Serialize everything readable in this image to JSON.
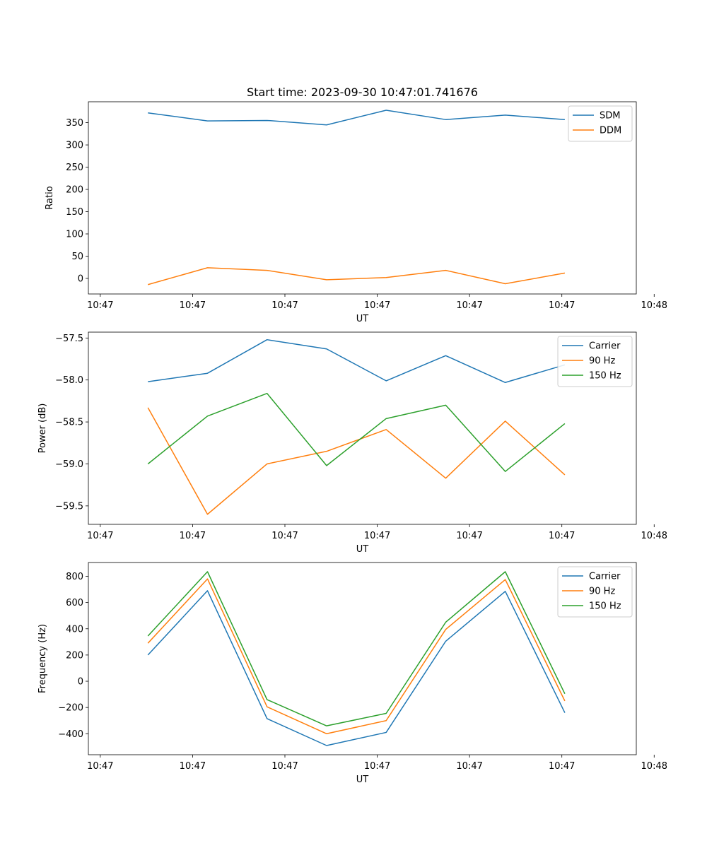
{
  "chart_data": [
    {
      "type": "line",
      "title": "Start time: 2023-09-30 10:47:01.741676",
      "xlabel": "UT",
      "ylabel": "Ratio",
      "xlim": [
        0,
        9.2
      ],
      "ylim": [
        -35,
        397
      ],
      "yticks": [
        0,
        50,
        100,
        150,
        200,
        250,
        300,
        350
      ],
      "xticks": [
        0.2,
        1.75,
        3.3,
        4.85,
        6.4,
        7.95,
        9.5
      ],
      "xtick_labels": [
        "10:47",
        "10:47",
        "10:47",
        "10:47",
        "10:47",
        "10:47",
        "10:48"
      ],
      "x": [
        1,
        2,
        3,
        4,
        5,
        6,
        7,
        8
      ],
      "legend_position": "top-right",
      "series": [
        {
          "name": "SDM",
          "color": "#1f77b4",
          "values": [
            372,
            354,
            355,
            345,
            378,
            357,
            367,
            357
          ]
        },
        {
          "name": "DDM",
          "color": "#ff7f0e",
          "values": [
            -14,
            24,
            18,
            -3,
            2,
            18,
            -12,
            12
          ]
        }
      ]
    },
    {
      "type": "line",
      "title": "",
      "xlabel": "UT",
      "ylabel": "Power (dB)",
      "xlim": [
        0,
        9.2
      ],
      "ylim": [
        -59.72,
        -57.43
      ],
      "yticks": [
        -59.5,
        -59.0,
        -58.5,
        -58.0,
        -57.5
      ],
      "ytick_labels": [
        "−59.5",
        "−59.0",
        "−58.5",
        "−58.0",
        "−57.5"
      ],
      "xticks": [
        0.2,
        1.75,
        3.3,
        4.85,
        6.4,
        7.95,
        9.5
      ],
      "xtick_labels": [
        "10:47",
        "10:47",
        "10:47",
        "10:47",
        "10:47",
        "10:47",
        "10:48"
      ],
      "x": [
        1,
        2,
        3,
        4,
        5,
        6,
        7,
        8
      ],
      "legend_position": "top-right",
      "series": [
        {
          "name": "Carrier",
          "color": "#1f77b4",
          "values": [
            -58.02,
            -57.92,
            -57.52,
            -57.63,
            -58.01,
            -57.71,
            -58.03,
            -57.82
          ]
        },
        {
          "name": "90 Hz",
          "color": "#ff7f0e",
          "values": [
            -58.33,
            -59.6,
            -59.0,
            -58.85,
            -58.59,
            -59.17,
            -58.49,
            -59.13
          ]
        },
        {
          "name": "150 Hz",
          "color": "#2ca02c",
          "values": [
            -59.0,
            -58.43,
            -58.16,
            -59.02,
            -58.46,
            -58.3,
            -59.09,
            -58.52
          ]
        }
      ]
    },
    {
      "type": "line",
      "title": "",
      "xlabel": "UT",
      "ylabel": "Frequency (Hz)",
      "xlim": [
        0,
        9.2
      ],
      "ylim": [
        -560,
        905
      ],
      "yticks": [
        -400,
        -200,
        0,
        200,
        400,
        600,
        800
      ],
      "ytick_labels": [
        "−400",
        "−200",
        "0",
        "200",
        "400",
        "600",
        "800"
      ],
      "xticks": [
        0.2,
        1.75,
        3.3,
        4.85,
        6.4,
        7.95,
        9.5
      ],
      "xtick_labels": [
        "10:47",
        "10:47",
        "10:47",
        "10:47",
        "10:47",
        "10:47",
        "10:48"
      ],
      "x": [
        1,
        2,
        3,
        4,
        5,
        6,
        7,
        8
      ],
      "legend_position": "top-right",
      "series": [
        {
          "name": "Carrier",
          "color": "#1f77b4",
          "values": [
            200,
            690,
            -285,
            -490,
            -390,
            305,
            685,
            -240
          ]
        },
        {
          "name": "90 Hz",
          "color": "#ff7f0e",
          "values": [
            290,
            780,
            -195,
            -400,
            -300,
            395,
            775,
            -150
          ]
        },
        {
          "name": "150 Hz",
          "color": "#2ca02c",
          "values": [
            345,
            835,
            -140,
            -340,
            -245,
            450,
            835,
            -95
          ]
        }
      ]
    }
  ]
}
